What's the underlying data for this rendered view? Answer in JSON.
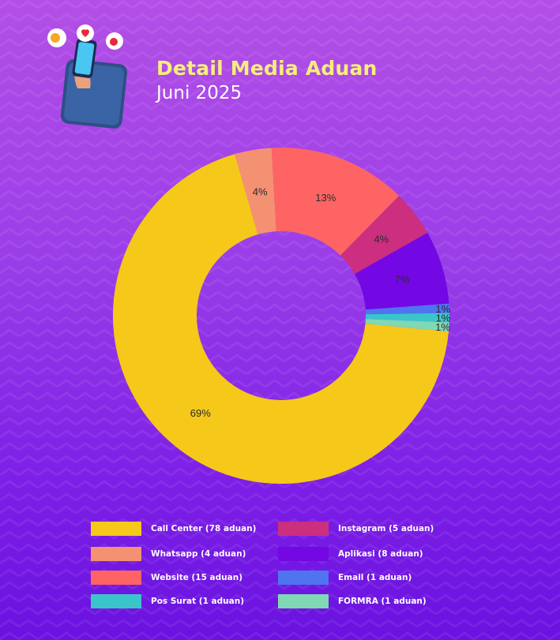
{
  "header": {
    "title": "Detail Media Aduan",
    "subtitle": "Juni 2025"
  },
  "illustration": {
    "icon": "phone-hand-notification-icon"
  },
  "chart_data": {
    "type": "pie",
    "donut": true,
    "title": "Detail Media Aduan",
    "subtitle": "Juni 2025",
    "legend_position": "bottom",
    "categories": [
      "Call Center",
      "Whatsapp",
      "Website",
      "Instagram",
      "Aplikasi",
      "Email",
      "Pos Surat",
      "FORMRA"
    ],
    "values": [
      78,
      4,
      15,
      5,
      8,
      1,
      1,
      1
    ],
    "data_labels": [
      "69%",
      "4%",
      "13%",
      "4%",
      "7%",
      "1%",
      "1%",
      "1%"
    ],
    "colors": [
      "#f6c81a",
      "#f49173",
      "#ff6464",
      "#cc2f7f",
      "#7308e4",
      "#4f74f0",
      "#3ac6c9",
      "#7fd9b4"
    ],
    "legend": [
      {
        "label": "Call Center (78 aduan)",
        "color": "#f6c81a"
      },
      {
        "label": "Whatsapp (4 aduan)",
        "color": "#f49173"
      },
      {
        "label": "Website (15 aduan)",
        "color": "#ff6464"
      },
      {
        "label": "Pos Surat (1 aduan)",
        "color": "#3ac6c9"
      },
      {
        "label": "Instagram (5 aduan)",
        "color": "#cc2f7f"
      },
      {
        "label": "Aplikasi (8 aduan)",
        "color": "#7308e4"
      },
      {
        "label": "Email  (1 aduan)",
        "color": "#4f74f0"
      },
      {
        "label": "FORMRA (1 aduan)",
        "color": "#7fd9b4"
      }
    ]
  }
}
